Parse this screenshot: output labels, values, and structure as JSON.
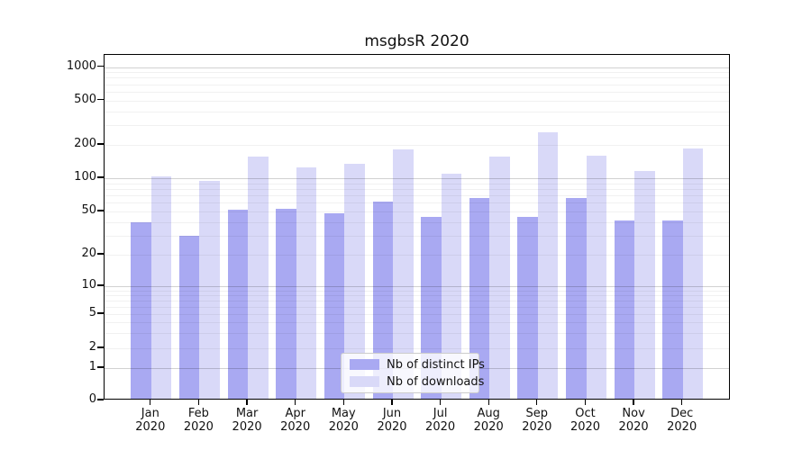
{
  "chart_data": {
    "type": "bar",
    "title": "msgbsR 2020",
    "categories": [
      "Jan",
      "Feb",
      "Mar",
      "Apr",
      "May",
      "Jun",
      "Jul",
      "Aug",
      "Sep",
      "Oct",
      "Nov",
      "Dec"
    ],
    "x_tick_year": "2020",
    "series": [
      {
        "name": "Nb of distinct IPs",
        "color": "#a9a9f2",
        "values": [
          38,
          29,
          50,
          51,
          46,
          59,
          43,
          64,
          43,
          64,
          40,
          40
        ]
      },
      {
        "name": "Nb of downloads",
        "color": "#d9d9f8",
        "values": [
          100,
          92,
          150,
          120,
          131,
          175,
          105,
          152,
          250,
          155,
          113,
          178
        ]
      }
    ],
    "y_ticks": [
      0,
      1,
      2,
      5,
      10,
      20,
      50,
      100,
      200,
      500,
      1000
    ],
    "yscale": "symlog",
    "ylim": [
      0,
      1200
    ],
    "xlabel": "",
    "ylabel": "",
    "grid": true,
    "gridline_minor_color": "#ececec",
    "gridline_major_color": "#c9c9c9",
    "legend_position": "lower center",
    "background_color": "#ffffff"
  }
}
